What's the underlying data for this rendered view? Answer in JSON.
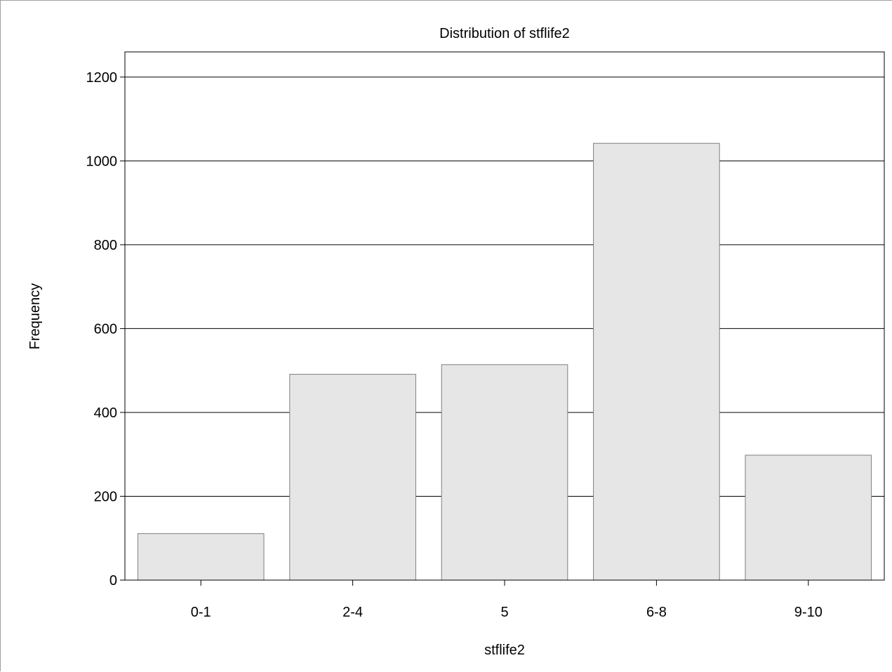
{
  "chart_data": {
    "type": "bar",
    "title": "Distribution of stflife2",
    "xlabel": "stflife2",
    "ylabel": "Frequency",
    "categories": [
      "0-1",
      "2-4",
      "5",
      "6-8",
      "9-10"
    ],
    "values": [
      111,
      491,
      514,
      1042,
      298
    ],
    "ylim": [
      0,
      1260
    ],
    "yticks": [
      0,
      200,
      400,
      600,
      800,
      1000,
      1200
    ],
    "grid": true,
    "legend": "none",
    "colors": {
      "bar_fill": "#e6e6e6",
      "bar_stroke": "#7f7f7f",
      "grid": "#000000",
      "axis": "#000000"
    }
  }
}
